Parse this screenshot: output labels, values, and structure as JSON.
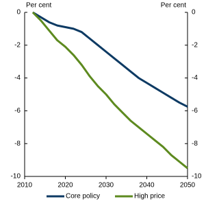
{
  "chart_data": {
    "type": "line",
    "y_label": "Per cent",
    "y2_label": "Per cent",
    "x": [
      2012,
      2014,
      2016,
      2018,
      2020,
      2022,
      2024,
      2026,
      2028,
      2030,
      2032,
      2034,
      2036,
      2038,
      2040,
      2042,
      2044,
      2046,
      2048,
      2050
    ],
    "series": [
      {
        "name": "Core policy",
        "color": "#0d3a63",
        "values": [
          0,
          -0.3,
          -0.6,
          -0.8,
          -0.9,
          -1.0,
          -1.2,
          -1.6,
          -2.0,
          -2.4,
          -2.8,
          -3.2,
          -3.6,
          -4.0,
          -4.3,
          -4.6,
          -4.9,
          -5.2,
          -5.5,
          -5.75
        ]
      },
      {
        "name": "High price",
        "color": "#5d8a1f",
        "values": [
          0,
          -0.5,
          -1.1,
          -1.7,
          -2.1,
          -2.6,
          -3.2,
          -3.9,
          -4.5,
          -5.0,
          -5.6,
          -6.1,
          -6.6,
          -7.0,
          -7.4,
          -7.8,
          -8.2,
          -8.7,
          -9.1,
          -9.5
        ]
      }
    ],
    "xlim": [
      2010,
      2050
    ],
    "xticks": [
      2010,
      2020,
      2030,
      2040,
      2050
    ],
    "ylim": [
      -10,
      0
    ],
    "yticks": [
      0,
      -2,
      -4,
      -6,
      -8,
      -10
    ],
    "y2lim": [
      -10,
      0
    ],
    "y2ticks": [
      0,
      -2,
      -4,
      -6,
      -8,
      -10
    ],
    "legend": "bottom"
  }
}
